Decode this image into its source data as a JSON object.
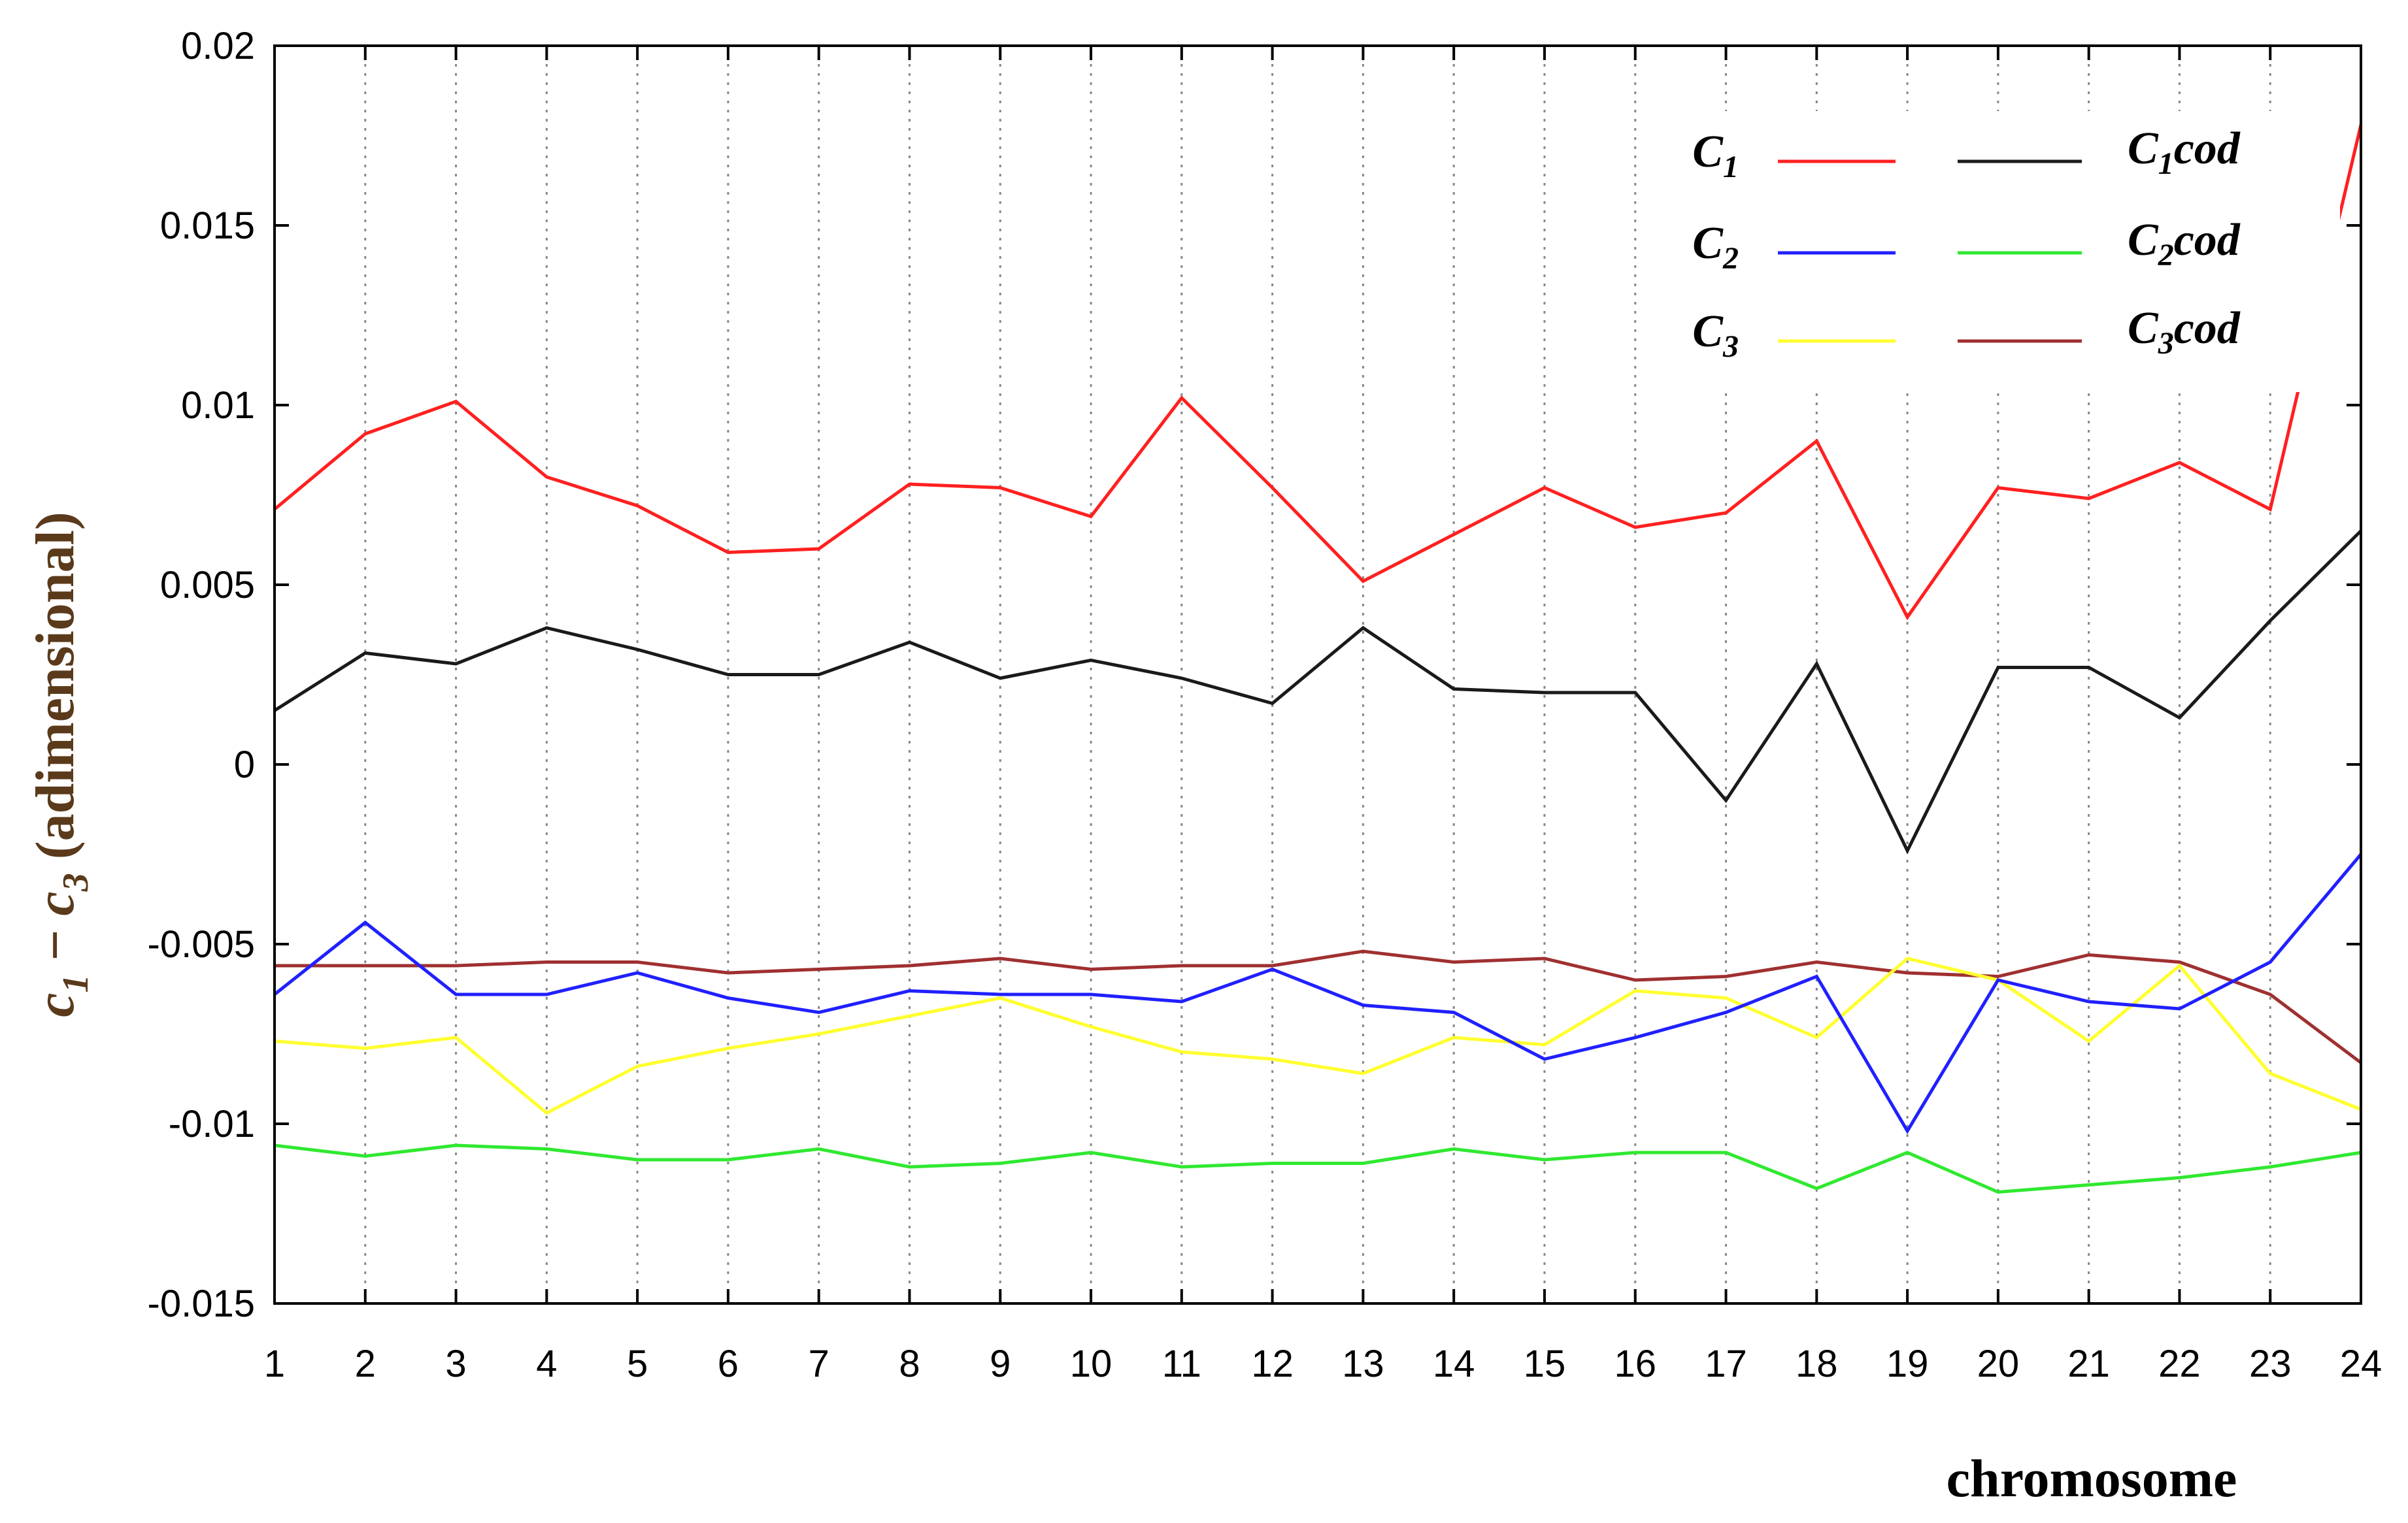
{
  "chart_data": {
    "type": "line",
    "title": "",
    "xlabel": "chromosome",
    "ylabel": {
      "parts": [
        "c",
        "1",
        " − ",
        "c",
        "3",
        " (adimensional)"
      ]
    },
    "x": [
      1,
      2,
      3,
      4,
      5,
      6,
      7,
      8,
      9,
      10,
      11,
      12,
      13,
      14,
      15,
      16,
      17,
      18,
      19,
      20,
      21,
      22,
      23,
      24
    ],
    "xlim": [
      1,
      24
    ],
    "ylim": [
      -0.015,
      0.02
    ],
    "y_ticks": [
      "0.02",
      "0.015",
      "0.01",
      "0.005",
      "0",
      "-0.005",
      "-0.01",
      "-0.015"
    ],
    "y_tick_values": [
      0.02,
      0.015,
      0.01,
      0.005,
      0,
      -0.005,
      -0.01,
      -0.015
    ],
    "x_ticks": [
      "1",
      "2",
      "3",
      "4",
      "5",
      "6",
      "7",
      "8",
      "9",
      "10",
      "11",
      "12",
      "13",
      "14",
      "15",
      "16",
      "17",
      "18",
      "19",
      "20",
      "21",
      "22",
      "23",
      "24"
    ],
    "grid": "vertical dotted",
    "legend_position": "top-right",
    "series": [
      {
        "name_main": "C",
        "name_sub": "1",
        "name_suffix": "",
        "color": "#ff2020",
        "values": [
          0.0071,
          0.0092,
          0.0101,
          0.008,
          0.0072,
          0.0059,
          0.006,
          0.0078,
          0.0077,
          0.0069,
          0.0102,
          0.0077,
          0.0051,
          0.0064,
          0.0077,
          0.0066,
          0.007,
          0.009,
          0.0041,
          0.0077,
          0.0074,
          0.0084,
          0.0071,
          0.0178
        ]
      },
      {
        "name_main": "C",
        "name_sub": "2",
        "name_suffix": "",
        "color": "#2020ff",
        "values": [
          -0.0064,
          -0.0044,
          -0.0064,
          -0.0064,
          -0.0058,
          -0.0065,
          -0.0069,
          -0.0063,
          -0.0064,
          -0.0064,
          -0.0066,
          -0.0057,
          -0.0067,
          -0.0069,
          -0.0082,
          -0.0076,
          -0.0069,
          -0.0059,
          -0.0102,
          -0.006,
          -0.0066,
          -0.0068,
          -0.0055,
          -0.0025
        ]
      },
      {
        "name_main": "C",
        "name_sub": "3",
        "name_suffix": "",
        "color": "#ffff30",
        "values": [
          -0.0077,
          -0.0079,
          -0.0076,
          -0.0097,
          -0.0084,
          -0.0079,
          -0.0075,
          -0.007,
          -0.0065,
          -0.0073,
          -0.008,
          -0.0082,
          -0.0086,
          -0.0076,
          -0.0078,
          -0.0063,
          -0.0065,
          -0.0076,
          -0.0054,
          -0.006,
          -0.0077,
          -0.0056,
          -0.0086,
          -0.0096
        ]
      },
      {
        "name_main": "C",
        "name_sub": "1",
        "name_suffix": "cod",
        "color": "#1a1a1a",
        "values": [
          0.0015,
          0.0031,
          0.0028,
          0.0038,
          0.0032,
          0.0025,
          0.0025,
          0.0034,
          0.0024,
          0.0029,
          0.0024,
          0.0017,
          0.0038,
          0.0021,
          0.002,
          0.002,
          -0.001,
          0.0028,
          -0.0024,
          0.0027,
          0.0027,
          0.0013,
          0.004,
          0.0065
        ]
      },
      {
        "name_main": "C",
        "name_sub": "2",
        "name_suffix": "cod",
        "color": "#30e830",
        "values": [
          -0.0106,
          -0.0109,
          -0.0106,
          -0.0107,
          -0.011,
          -0.011,
          -0.0107,
          -0.0112,
          -0.0111,
          -0.0108,
          -0.0112,
          -0.0111,
          -0.0111,
          -0.0107,
          -0.011,
          -0.0108,
          -0.0108,
          -0.0118,
          -0.0108,
          -0.0119,
          -0.0117,
          -0.0115,
          -0.0112,
          -0.0108
        ]
      },
      {
        "name_main": "C",
        "name_sub": "3",
        "name_suffix": "cod",
        "color": "#a03030",
        "values": [
          -0.0056,
          -0.0056,
          -0.0056,
          -0.0055,
          -0.0055,
          -0.0058,
          -0.0057,
          -0.0056,
          -0.0054,
          -0.0057,
          -0.0056,
          -0.0056,
          -0.0052,
          -0.0055,
          -0.0054,
          -0.006,
          -0.0059,
          -0.0055,
          -0.0058,
          -0.0059,
          -0.0053,
          -0.0055,
          -0.0064,
          -0.0083
        ]
      }
    ]
  }
}
